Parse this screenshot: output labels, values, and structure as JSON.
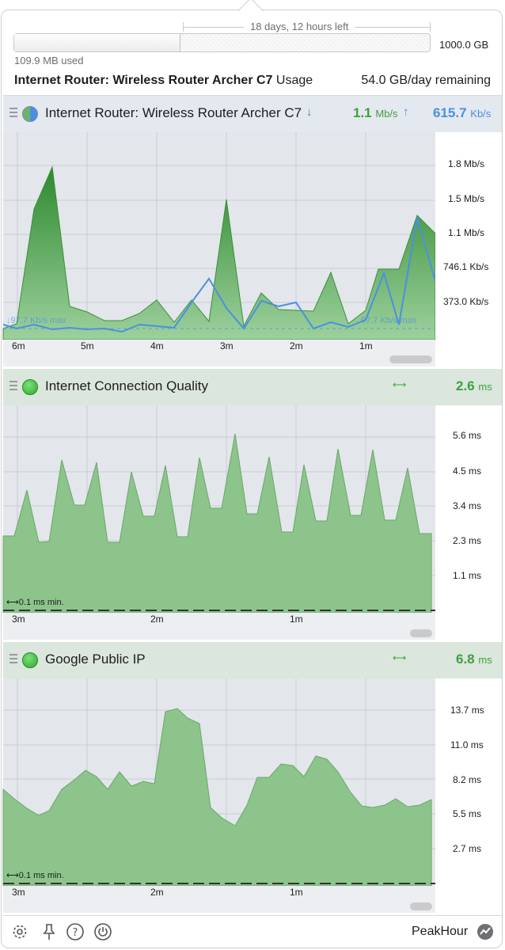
{
  "header": {
    "time_left": "18 days, 12 hours left",
    "used": "109.9 MB used",
    "quota": "1000.0 GB",
    "used_fraction": 0.4,
    "usage_title_bold": "Internet Router: Wireless Router Archer C7",
    "usage_title_suffix": "Usage",
    "remaining": "54.0 GB/day remaining"
  },
  "panels": [
    {
      "title": "Internet Router: Wireless Router Archer C7",
      "download_value": "1.1",
      "download_unit": "Mb/s",
      "upload_value": "615.7",
      "upload_unit": "Kb/s",
      "y_ticks": [
        "1.8 Mb/s",
        "1.5 Mb/s",
        "1.1 Mb/s",
        "746.1 Kb/s",
        "373.0 Kb/s"
      ],
      "x_ticks": [
        "6m",
        "5m",
        "4m",
        "3m",
        "2m",
        "1m"
      ],
      "max_note_left": "97.7 Kb/s max",
      "max_note_right": "97.7 Kb/s max"
    },
    {
      "title": "Internet Connection Quality",
      "value": "2.6",
      "unit": "ms",
      "y_ticks": [
        "5.6 ms",
        "4.5 ms",
        "3.4 ms",
        "2.3 ms",
        "1.1 ms"
      ],
      "x_ticks": [
        "3m",
        "2m",
        "1m"
      ],
      "min_note": "0.1 ms min."
    },
    {
      "title": "Google Public IP",
      "value": "6.8",
      "unit": "ms",
      "y_ticks": [
        "13.7 ms",
        "11.0 ms",
        "8.2 ms",
        "5.5 ms",
        "2.7 ms"
      ],
      "x_ticks": [
        "3m",
        "2m",
        "1m"
      ],
      "min_note": "0.1 ms min."
    }
  ],
  "footer": {
    "app_name": "PeakHour"
  },
  "colors": {
    "download_green": "#3fa03f",
    "upload_blue": "#4a90e2",
    "area_green": "#8cc48c"
  }
}
